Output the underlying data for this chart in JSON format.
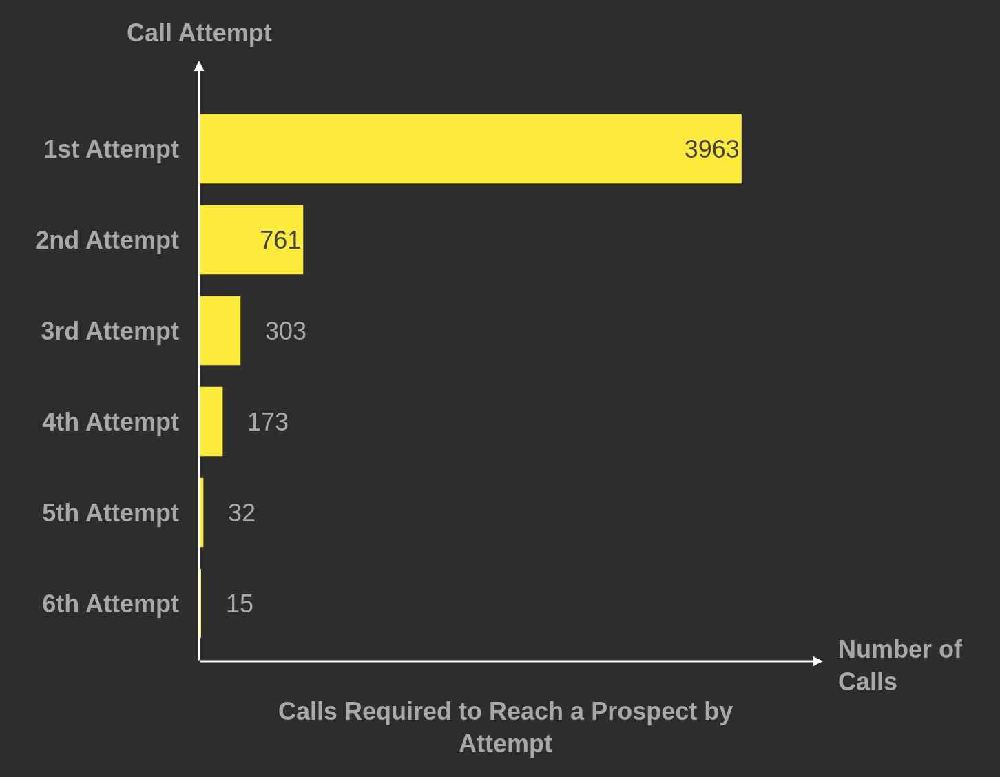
{
  "chart_data": {
    "type": "bar",
    "orientation": "horizontal",
    "title": "Calls Required to Reach a Prospect by Attempt",
    "xlabel": "Number of Calls",
    "ylabel": "Call Attempt",
    "categories": [
      "1st Attempt",
      "2nd Attempt",
      "3rd Attempt",
      "4th Attempt",
      "5th Attempt",
      "6th Attempt"
    ],
    "values": [
      3963,
      761,
      303,
      173,
      32,
      15
    ],
    "color": "#ffeb3b",
    "data_labels": true,
    "grid": false,
    "legend": false
  }
}
